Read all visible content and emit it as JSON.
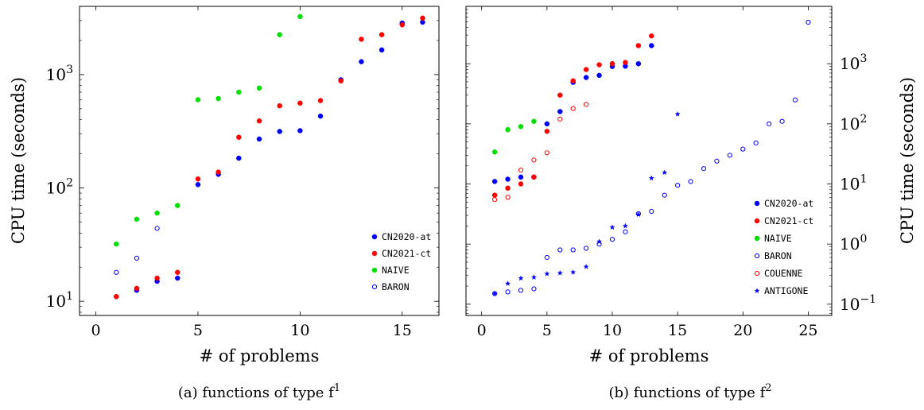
{
  "chart_data": [
    {
      "type": "scatter",
      "caption": "(a) functions of type f",
      "caption_superscript": "1",
      "xlabel": "# of problems",
      "ylabel": "CPU time (seconds)",
      "xlim": [
        -0.8,
        16.8
      ],
      "ylim": [
        7.5,
        4000
      ],
      "yscale": "log",
      "xticks": [
        0,
        5,
        10,
        15
      ],
      "yticks": [
        {
          "value": 10,
          "base": "10",
          "exp": "1"
        },
        {
          "value": 100,
          "base": "10",
          "exp": "2"
        },
        {
          "value": 1000,
          "base": "10",
          "exp": "3"
        }
      ],
      "legend_position": "bottom-right",
      "series": [
        {
          "name": "CN2020-at",
          "color": "#0000ff",
          "marker": "filled",
          "x": [
            1,
            2,
            3,
            4,
            5,
            6,
            7,
            8,
            9,
            10,
            11,
            12,
            13,
            14,
            15,
            16
          ],
          "y": [
            11,
            12.5,
            15,
            16,
            107,
            132,
            183,
            270,
            315,
            320,
            430,
            900,
            1300,
            1650,
            2850,
            2900
          ]
        },
        {
          "name": "CN2021-ct",
          "color": "#ff0000",
          "marker": "filled",
          "x": [
            1,
            2,
            3,
            4,
            5,
            6,
            7,
            8,
            9,
            10,
            11,
            12,
            13,
            14,
            15,
            16
          ],
          "y": [
            11,
            13,
            16,
            18,
            120,
            138,
            280,
            390,
            530,
            560,
            590,
            880,
            2050,
            2250,
            2750,
            3150
          ]
        },
        {
          "name": "NAIVE",
          "color": "#00e000",
          "marker": "filled",
          "x": [
            1,
            2,
            3,
            4,
            5,
            6,
            7,
            8,
            9,
            10
          ],
          "y": [
            32,
            53,
            60,
            70,
            600,
            615,
            700,
            760,
            2250,
            3250
          ]
        },
        {
          "name": "BARON",
          "color": "#0000ff",
          "marker": "open",
          "x": [
            1,
            2,
            3
          ],
          "y": [
            18,
            24,
            44
          ]
        }
      ]
    },
    {
      "type": "scatter",
      "caption": "(b) functions of type f",
      "caption_superscript": "2",
      "xlabel": "# of problems",
      "ylabel": "CPU time (seconds)",
      "xlim": [
        -1.2,
        26.8
      ],
      "ylim": [
        0.065,
        9000
      ],
      "yscale": "log",
      "xticks": [
        0,
        5,
        10,
        15,
        20,
        25
      ],
      "yticks": [
        {
          "value": 0.1,
          "base": "10",
          "exp": "−1"
        },
        {
          "value": 1,
          "base": "10",
          "exp": "0"
        },
        {
          "value": 10,
          "base": "10",
          "exp": "1"
        },
        {
          "value": 100,
          "base": "10",
          "exp": "2"
        },
        {
          "value": 1000,
          "base": "10",
          "exp": "3"
        }
      ],
      "legend_position": "bottom-right",
      "series": [
        {
          "name": "CN2020-at",
          "color": "#0000ff",
          "marker": "filled",
          "x": [
            1,
            2,
            3,
            4,
            5,
            6,
            7,
            8,
            9,
            10,
            11,
            12,
            13
          ],
          "y": [
            11,
            12,
            13,
            13,
            100,
            160,
            490,
            590,
            640,
            900,
            910,
            1000,
            2000
          ]
        },
        {
          "name": "CN2021-ct",
          "color": "#ff0000",
          "marker": "filled",
          "x": [
            1,
            2,
            3,
            4,
            5,
            6,
            7,
            8,
            9,
            10,
            11,
            12,
            13
          ],
          "y": [
            6.5,
            8.5,
            10,
            13,
            75,
            300,
            520,
            800,
            960,
            1000,
            1050,
            2000,
            2900
          ]
        },
        {
          "name": "NAIVE",
          "color": "#00e000",
          "marker": "filled",
          "x": [
            1,
            2,
            3,
            4
          ],
          "y": [
            34,
            80,
            90,
            110
          ]
        },
        {
          "name": "BARON",
          "color": "#0000ff",
          "marker": "open",
          "x": [
            1,
            2,
            3,
            4,
            5,
            6,
            7,
            8,
            9,
            10,
            11,
            12,
            13,
            14,
            15,
            16,
            17,
            18,
            19,
            20,
            21,
            22,
            23,
            24,
            25
          ],
          "y": [
            0.15,
            0.16,
            0.17,
            0.18,
            0.6,
            0.8,
            0.8,
            0.85,
            1.0,
            1.2,
            1.6,
            3.2,
            3.5,
            6.5,
            9.5,
            11,
            18,
            24,
            30,
            38,
            48,
            100,
            110,
            250,
            4900
          ]
        },
        {
          "name": "COUENNE",
          "color": "#ff0000",
          "marker": "open",
          "x": [
            1,
            2,
            3,
            4,
            5,
            6,
            7,
            8
          ],
          "y": [
            5.5,
            6,
            17,
            25,
            33,
            120,
            180,
            210
          ]
        },
        {
          "name": "ANTIGONE",
          "color": "#0000ff",
          "marker": "star",
          "x": [
            1,
            2,
            3,
            4,
            5,
            6,
            7,
            8,
            9,
            10,
            11,
            12,
            13,
            14,
            15
          ],
          "y": [
            0.15,
            0.22,
            0.27,
            0.28,
            0.32,
            0.33,
            0.34,
            0.42,
            1.1,
            1.9,
            2,
            3.1,
            12.5,
            15.5,
            145
          ]
        }
      ]
    }
  ]
}
